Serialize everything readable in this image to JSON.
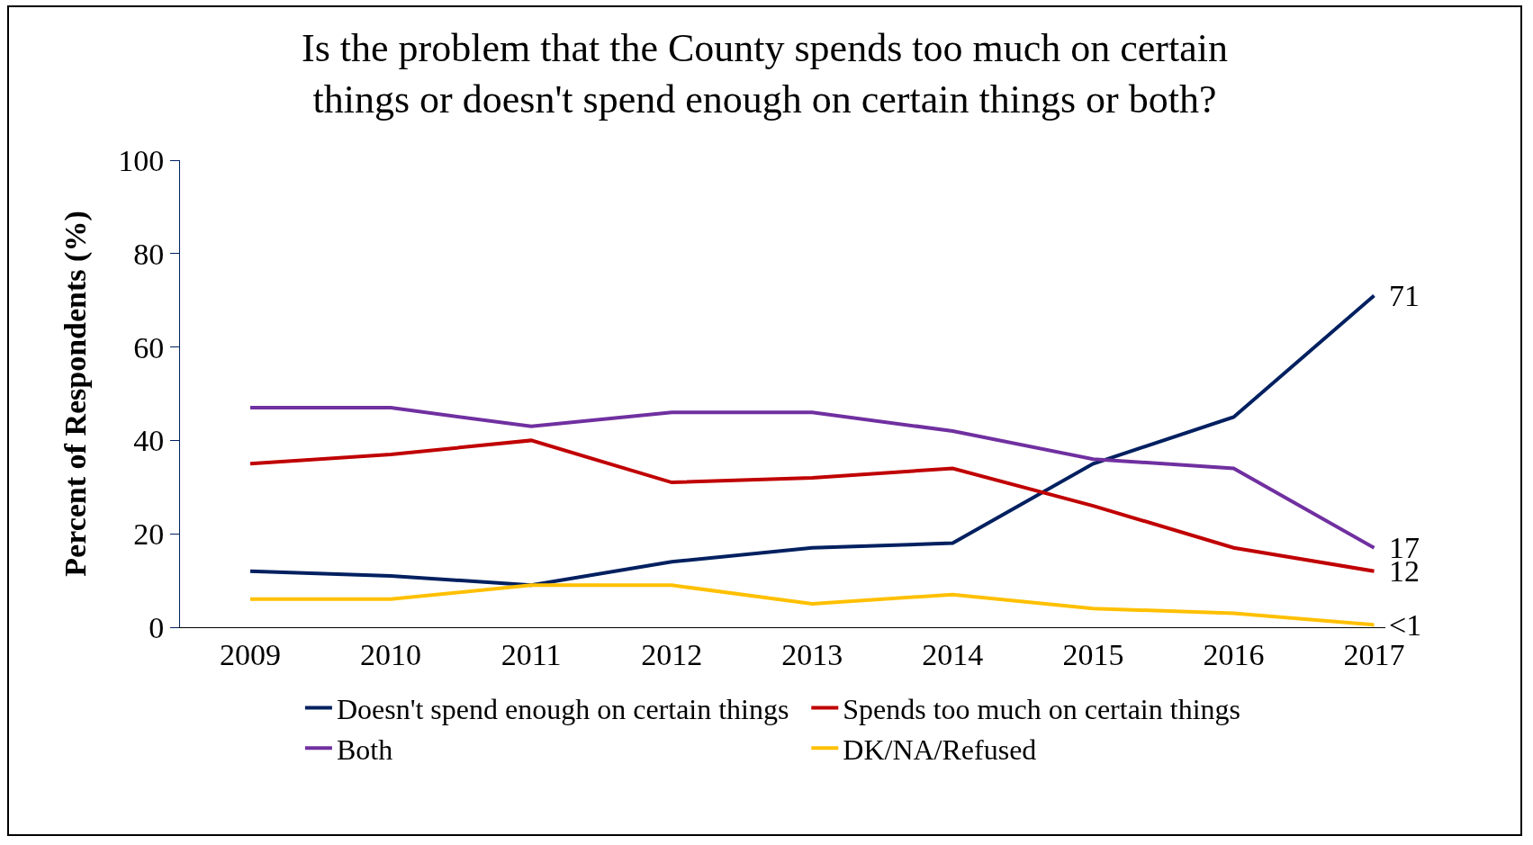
{
  "chart_data": {
    "type": "line",
    "title": "Is the problem that the County spends too much on certain things or doesn't spend enough on certain things or both?",
    "ylabel": "Percent of Respondents (%)",
    "categories": [
      "2009",
      "2010",
      "2011",
      "2012",
      "2013",
      "2014",
      "2015",
      "2016",
      "2017"
    ],
    "ylim": [
      0,
      100
    ],
    "yticks": [
      0,
      20,
      40,
      60,
      80,
      100
    ],
    "grid": false,
    "legend": "bottom",
    "marker": "none",
    "line_style": "solid",
    "series": [
      {
        "name": "Doesn't spend enough on certain things",
        "color": "#002060",
        "values": [
          12,
          11,
          9,
          14,
          17,
          18,
          35,
          45,
          71
        ],
        "value_labels": [
          null,
          null,
          null,
          null,
          null,
          null,
          null,
          null,
          "71"
        ]
      },
      {
        "name": "Spends too much on certain things",
        "color": "#c00000",
        "values": [
          35,
          37,
          40,
          31,
          32,
          34,
          26,
          17,
          12
        ],
        "value_labels": [
          null,
          null,
          null,
          null,
          null,
          null,
          null,
          null,
          "12"
        ]
      },
      {
        "name": "Both",
        "color": "#7030a0",
        "values": [
          47,
          47,
          43,
          46,
          46,
          42,
          36,
          34,
          17
        ],
        "value_labels": [
          null,
          null,
          null,
          null,
          null,
          null,
          null,
          null,
          "17"
        ]
      },
      {
        "name": "DK/NA/Refused",
        "color": "#ffc000",
        "values": [
          6,
          6,
          9,
          9,
          5,
          7,
          4,
          3,
          0.5
        ],
        "value_labels": [
          null,
          null,
          null,
          null,
          null,
          null,
          null,
          null,
          "<1"
        ]
      }
    ]
  }
}
